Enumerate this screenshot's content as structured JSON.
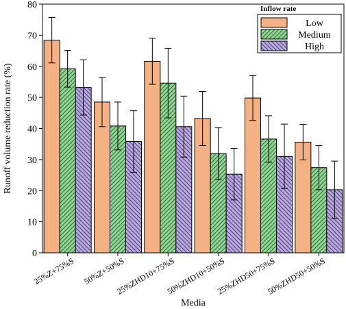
{
  "chart_data": {
    "type": "bar",
    "title": "",
    "xlabel": "Media",
    "ylabel": "Runoff volume reduction rate (%)",
    "ylim": [
      0,
      80
    ],
    "yticks": [
      0,
      10,
      20,
      30,
      40,
      50,
      60,
      70,
      80
    ],
    "grid": false,
    "legend": {
      "title": "Inflow rate",
      "placement": "top-right"
    },
    "categories": [
      "25%Z+75%S",
      "50%Z+50%S",
      "25%ZHD10+75%S",
      "50%ZHD10+50%S",
      "25%ZHD50+75%S",
      "50%ZHD50+50%S"
    ],
    "series": [
      {
        "name": "Low",
        "color": "#f4b183",
        "pattern": "none",
        "values": [
          68.4,
          48.5,
          61.6,
          43.2,
          49.8,
          35.6
        ],
        "errors": [
          7.3,
          7.9,
          7.4,
          8.7,
          7.2,
          5.7
        ]
      },
      {
        "name": "Medium",
        "color": "#92d496",
        "pattern": "forward-hatch",
        "values": [
          59.2,
          40.8,
          54.6,
          31.9,
          36.6,
          27.4
        ],
        "errors": [
          5.9,
          7.7,
          11.2,
          8.3,
          7.5,
          7.1
        ]
      },
      {
        "name": "High",
        "color": "#b9a9dc",
        "pattern": "back-hatch",
        "values": [
          53.2,
          35.8,
          40.6,
          25.3,
          31.0,
          20.3
        ],
        "errors": [
          8.9,
          9.9,
          9.8,
          8.3,
          10.4,
          9.2
        ]
      }
    ]
  }
}
